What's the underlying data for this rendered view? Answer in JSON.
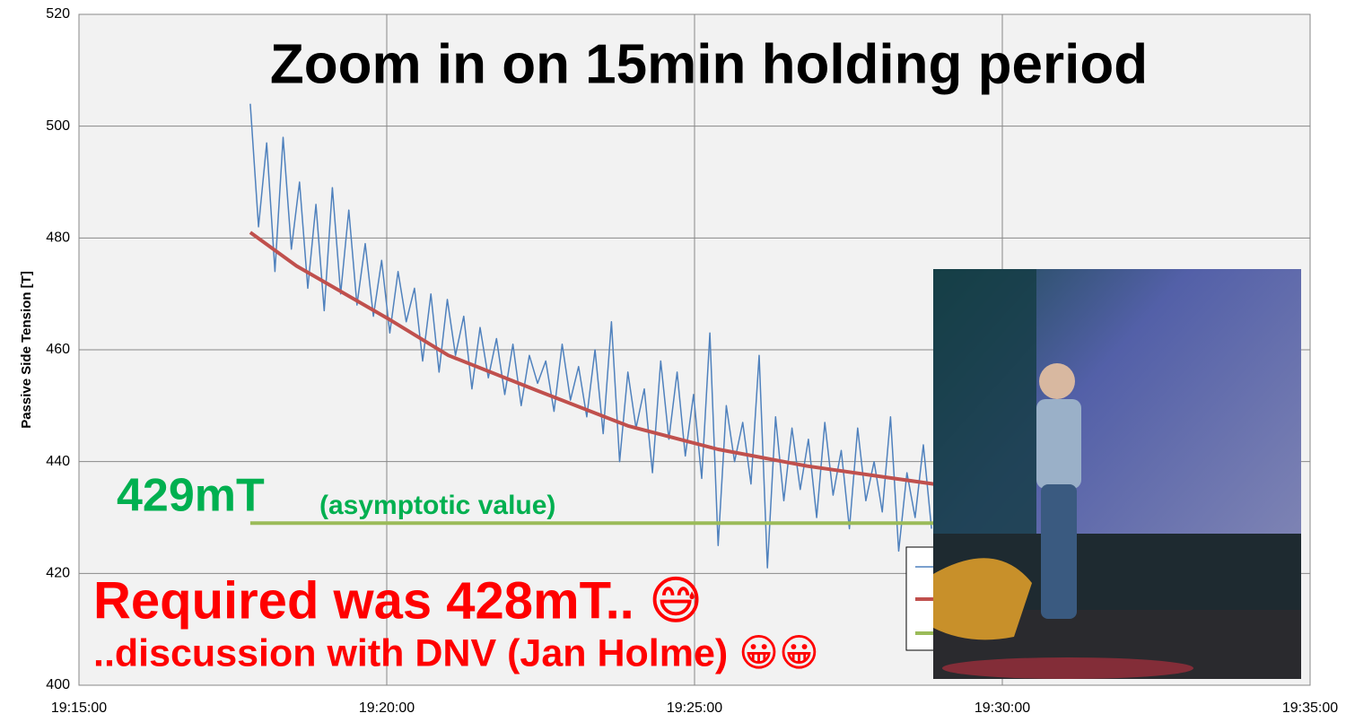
{
  "chart_data": {
    "type": "line",
    "title": "Zoom in on 15min holding period",
    "ylabel": "Passive Side Tension [T]",
    "xlim": [
      69300,
      70500
    ],
    "xticks": [
      {
        "value": 69300,
        "label": "19:15:00"
      },
      {
        "value": 69600,
        "label": "19:20:00"
      },
      {
        "value": 69900,
        "label": "19:25:00"
      },
      {
        "value": 70200,
        "label": "19:30:00"
      },
      {
        "value": 70500,
        "label": "19:35:00"
      }
    ],
    "ylim": [
      400,
      520
    ],
    "yticks": [
      400,
      420,
      440,
      460,
      480,
      500,
      520
    ],
    "grid": true,
    "series": [
      {
        "color": "#4f81bd",
        "width": 1.5,
        "x": [
          69467,
          69475,
          69483,
          69491,
          69499,
          69507,
          69515,
          69523,
          69531,
          69539,
          69547,
          69555,
          69563,
          69571,
          69579,
          69587,
          69595,
          69603,
          69611,
          69619,
          69627,
          69635,
          69643,
          69651,
          69659,
          69667,
          69675,
          69683,
          69691,
          69699,
          69707,
          69715,
          69723,
          69731,
          69739,
          69747,
          69755,
          69763,
          69771,
          69779,
          69787,
          69795,
          69803,
          69811,
          69819,
          69827,
          69835,
          69843,
          69851,
          69859,
          69867,
          69875,
          69883,
          69891,
          69899,
          69907,
          69915,
          69923,
          69931,
          69939,
          69947,
          69955,
          69963,
          69971,
          69979,
          69987,
          69995,
          70003,
          70011,
          70019,
          70027,
          70035,
          70043,
          70051,
          70059,
          70067,
          70075,
          70083,
          70091,
          70099,
          70107,
          70115,
          70123,
          70131
        ],
        "values": [
          504,
          482,
          497,
          474,
          498,
          478,
          490,
          471,
          486,
          467,
          489,
          470,
          485,
          468,
          479,
          466,
          476,
          463,
          474,
          465,
          471,
          458,
          470,
          456,
          469,
          459,
          466,
          453,
          464,
          455,
          462,
          452,
          461,
          450,
          459,
          454,
          458,
          449,
          461,
          451,
          457,
          448,
          460,
          445,
          465,
          440,
          456,
          446,
          453,
          438,
          458,
          444,
          456,
          441,
          452,
          437,
          463,
          425,
          450,
          440,
          447,
          436,
          459,
          421,
          448,
          433,
          446,
          435,
          444,
          430,
          447,
          434,
          442,
          428,
          446,
          433,
          440,
          431,
          448,
          424,
          438,
          430,
          443,
          428
        ]
      },
      {
        "color": "#c0504d",
        "width": 4,
        "x": [
          69467,
          69512,
          69601,
          69660,
          69748,
          69835,
          69923,
          70010,
          70098,
          70133
        ],
        "values": [
          481,
          475,
          465.6,
          459,
          452.6,
          446.4,
          442.2,
          439.2,
          436.9,
          436
        ]
      },
      {
        "color": "#9bbb59",
        "width": 4,
        "x": [
          69467,
          70133
        ],
        "values": [
          429,
          429
        ]
      }
    ],
    "annotations": {
      "asymptote_value": "429mT",
      "asymptote_note": "(asymptotic value)",
      "required": "Required was 428mT.. 😅",
      "discussion": "..discussion with DNV (Jan Holme) 😀😀"
    }
  }
}
